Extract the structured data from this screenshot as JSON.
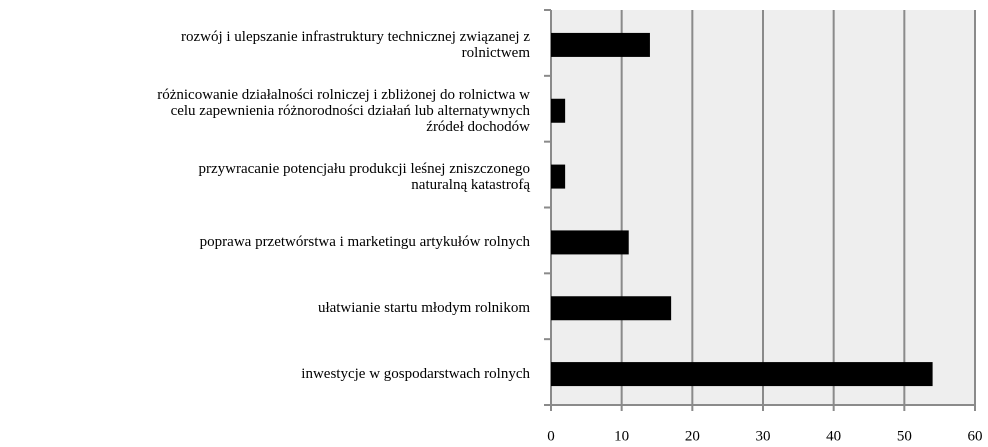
{
  "chart_data": {
    "type": "bar",
    "orientation": "horizontal",
    "categories": [
      "rozwój i ulepszanie infrastruktury  technicznej związanej z\nrolnictwem",
      "różnicowanie działalności rolniczej i zbliżonej do rolnictwa w\ncelu zapewnienia różnorodności działań lub alternatywnych\nźródeł dochodów",
      "przywracanie potencjału  produkcji leśnej zniszczonego\nnaturalną katastrofą",
      "poprawa przetwórstwa  i marketingu artykułów rolnych",
      "ułatwianie startu  młodym rolnikom",
      "inwestycje w gospodarstwach  rolnych"
    ],
    "values": [
      14,
      2,
      2,
      11,
      17,
      54
    ],
    "color": "#000000",
    "xlim": [
      0,
      60
    ],
    "xticks": [
      0,
      10,
      20,
      30,
      40,
      50,
      60
    ],
    "grid": true
  }
}
